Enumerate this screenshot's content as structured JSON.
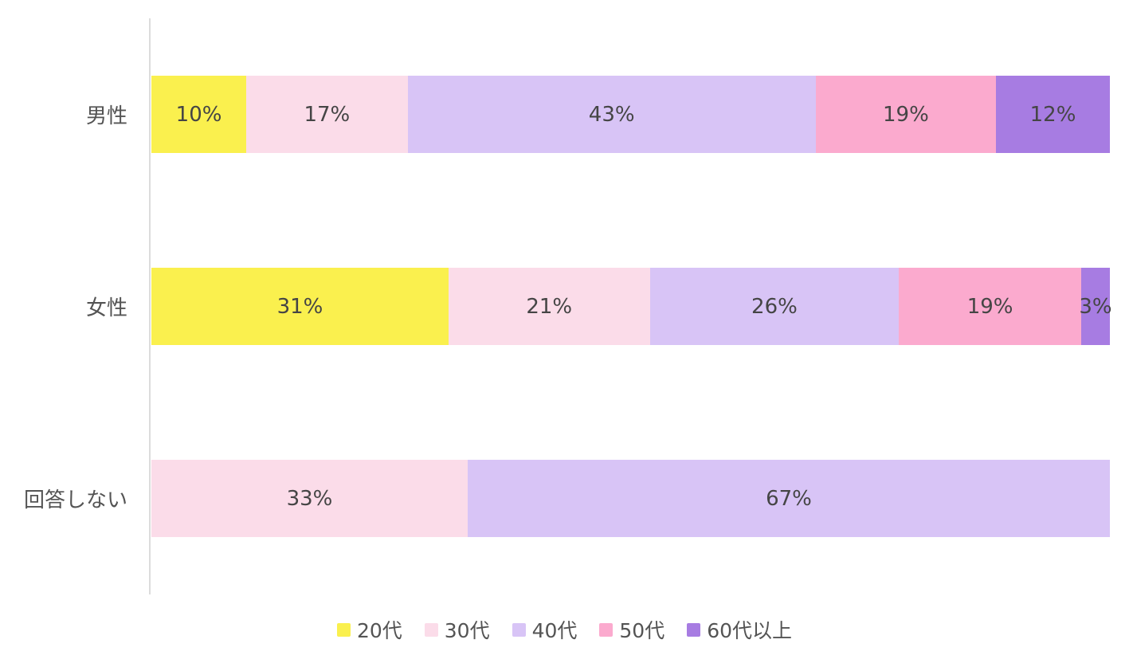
{
  "chart_data": {
    "type": "bar",
    "orientation": "horizontal-stacked",
    "title": "",
    "xlabel": "",
    "ylabel": "",
    "value_unit": "%",
    "xlim": [
      0,
      100
    ],
    "grid": false,
    "legend_position": "bottom",
    "categories": [
      "男性",
      "女性",
      "回答しない"
    ],
    "series": [
      {
        "name": "20代",
        "color": "#faf04e",
        "values": [
          10,
          31,
          null
        ]
      },
      {
        "name": "30代",
        "color": "#fbdce9",
        "values": [
          17,
          21,
          33
        ]
      },
      {
        "name": "40代",
        "color": "#d8c4f6",
        "values": [
          43,
          26,
          67
        ]
      },
      {
        "name": "50代",
        "color": "#fbaace",
        "values": [
          19,
          19,
          null
        ]
      },
      {
        "name": "60代以上",
        "color": "#a77ce2",
        "values": [
          12,
          3,
          null
        ]
      }
    ],
    "data_labels": {
      "男性": [
        "10%",
        "17%",
        "43%",
        "19%",
        "12%"
      ],
      "女性": [
        "31%",
        "21%",
        "26%",
        "19%",
        "3%"
      ],
      "回答しない": [
        "33%",
        "67%"
      ]
    }
  },
  "styles": {
    "background": "#ffffff",
    "axis_color": "#dcdcdc",
    "label_color": "#545454",
    "value_label_color": "#454545"
  }
}
